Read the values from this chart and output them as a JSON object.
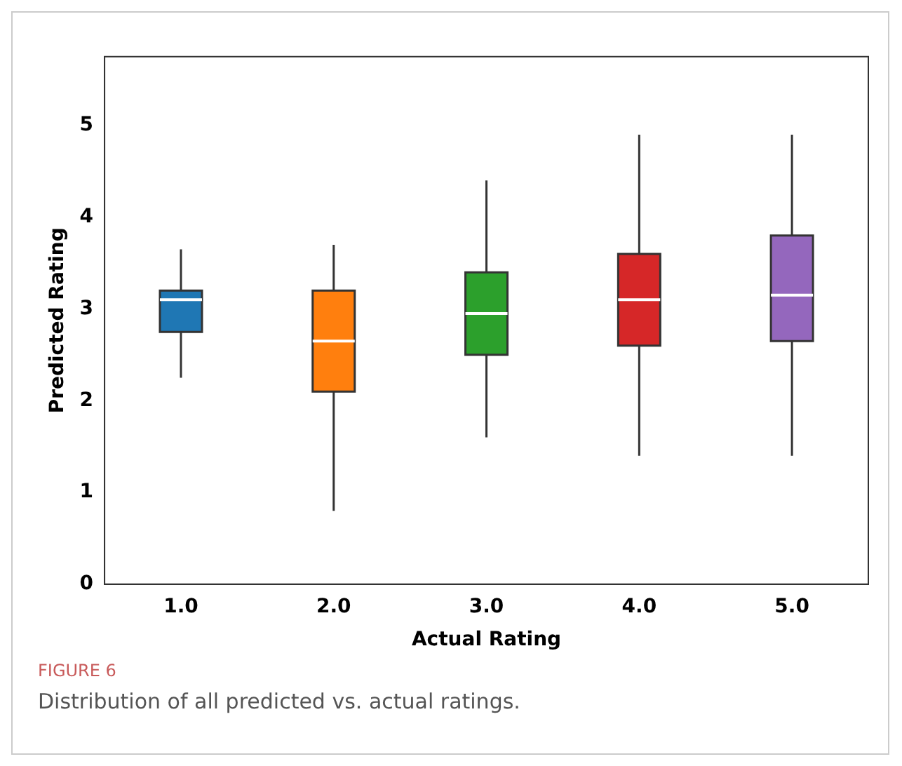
{
  "chart_data": {
    "type": "box",
    "xlabel": "Actual Rating",
    "ylabel": "Predicted Rating",
    "categories": [
      "1.0",
      "2.0",
      "3.0",
      "4.0",
      "5.0"
    ],
    "colors": [
      "#1f77b4",
      "#ff7f0e",
      "#2ca02c",
      "#d62728",
      "#9467bd"
    ],
    "boxes": [
      {
        "low": 2.25,
        "q1": 2.75,
        "median": 3.1,
        "q3": 3.2,
        "high": 3.65
      },
      {
        "low": 0.8,
        "q1": 2.1,
        "median": 2.65,
        "q3": 3.2,
        "high": 3.7
      },
      {
        "low": 1.6,
        "q1": 2.5,
        "median": 2.95,
        "q3": 3.4,
        "high": 4.4
      },
      {
        "low": 1.4,
        "q1": 2.6,
        "median": 3.1,
        "q3": 3.6,
        "high": 4.9
      },
      {
        "low": 1.4,
        "q1": 2.65,
        "median": 3.15,
        "q3": 3.8,
        "high": 4.9
      }
    ],
    "ylim": [
      0,
      5.75
    ],
    "yticks": [
      0,
      1,
      2,
      3,
      4,
      5
    ],
    "grid": false,
    "legend": false,
    "annotations": [
      "FIGURE 6",
      "Distribution of all predicted vs. actual ratings."
    ]
  }
}
